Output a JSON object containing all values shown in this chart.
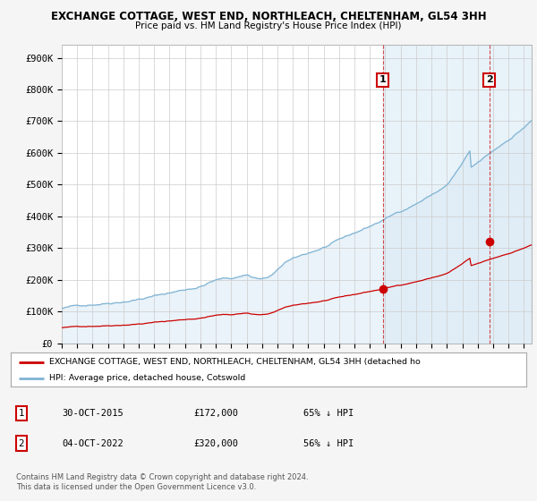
{
  "title_line1": "EXCHANGE COTTAGE, WEST END, NORTHLEACH, CHELTENHAM, GL54 3HH",
  "title_line2": "Price paid vs. HM Land Registry's House Price Index (HPI)",
  "hpi_color": "#7fb3d3",
  "hpi_fill_color": "#daeaf5",
  "price_color": "#cc0000",
  "background_color": "#f5f5f5",
  "plot_bg_color": "#ffffff",
  "grid_color": "#cccccc",
  "yticks": [
    0,
    100000,
    200000,
    300000,
    400000,
    500000,
    600000,
    700000,
    800000,
    900000
  ],
  "ytick_labels": [
    "£0",
    "£100K",
    "£200K",
    "£300K",
    "£400K",
    "£500K",
    "£600K",
    "£700K",
    "£800K",
    "£900K"
  ],
  "year_start": 1995,
  "year_end": 2025,
  "sale1_year": 2015.83,
  "sale1_price": 172000,
  "sale2_year": 2022.75,
  "sale2_price": 320000,
  "legend_label_red": "EXCHANGE COTTAGE, WEST END, NORTHLEACH, CHELTENHAM, GL54 3HH (detached ho",
  "legend_label_blue": "HPI: Average price, detached house, Cotswold",
  "annotation1_text": "1",
  "annotation2_text": "2",
  "table_row1": [
    "1",
    "30-OCT-2015",
    "£172,000",
    "65% ↓ HPI"
  ],
  "table_row2": [
    "2",
    "04-OCT-2022",
    "£320,000",
    "56% ↓ HPI"
  ],
  "footer": "Contains HM Land Registry data © Crown copyright and database right 2024.\nThis data is licensed under the Open Government Licence v3.0."
}
